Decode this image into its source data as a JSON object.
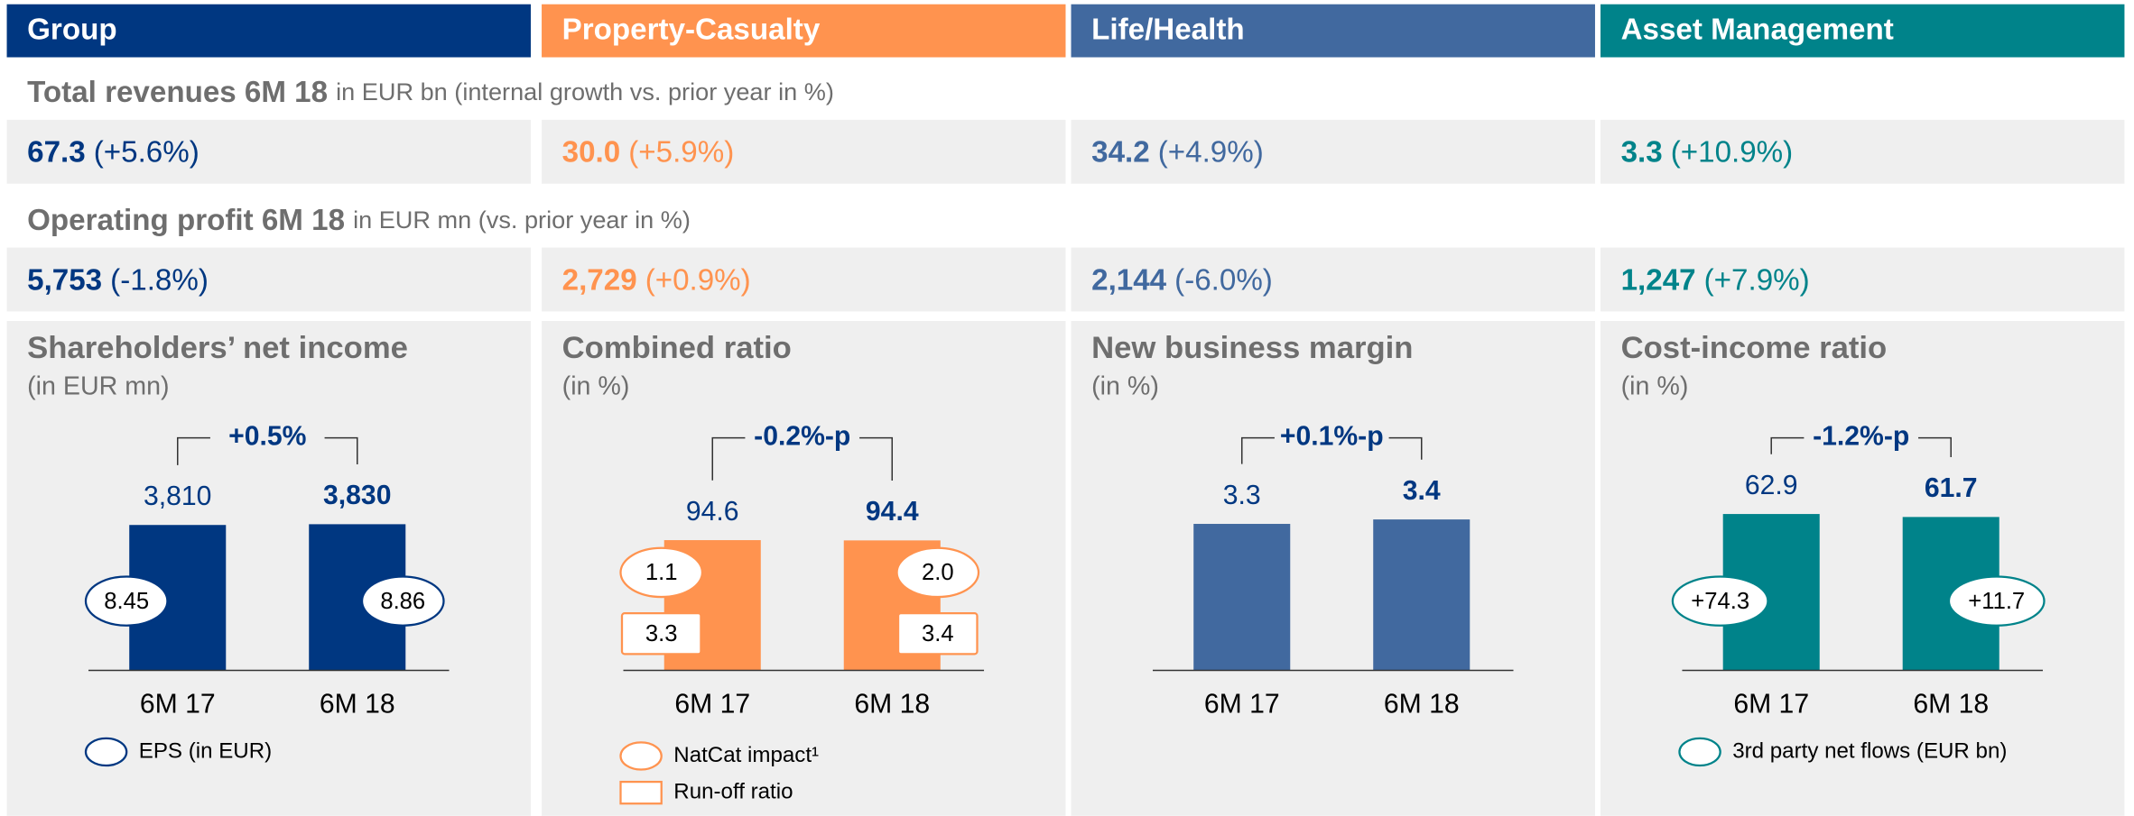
{
  "columns": [
    {
      "name": "Group",
      "color": "#003781"
    },
    {
      "name": "Property-Casualty",
      "color": "#ff934f"
    },
    {
      "name": "Life/Health",
      "color": "#41699f"
    },
    {
      "name": "Asset Management",
      "color": "#00838a"
    }
  ],
  "rows": [
    {
      "label": "Total revenues 6M 18",
      "note": "in EUR bn (internal growth vs. prior year in %)",
      "cells": [
        {
          "value": "67.3",
          "change": "(+5.6%)"
        },
        {
          "value": "30.0",
          "change": "(+5.9%)"
        },
        {
          "value": "34.2",
          "change": "(+4.9%)"
        },
        {
          "value": "3.3",
          "change": "(+10.9%)"
        }
      ]
    },
    {
      "label": "Operating profit 6M 18",
      "note": "in EUR mn (vs. prior year in %)",
      "cells": [
        {
          "value": "5,753",
          "change": "(-1.8%)"
        },
        {
          "value": "2,729",
          "change": "(+0.9%)"
        },
        {
          "value": "2,144",
          "change": "(-6.0%)"
        },
        {
          "value": "1,247",
          "change": "(+7.9%)"
        }
      ]
    }
  ],
  "chart_data": [
    {
      "type": "bar",
      "title": "Shareholders’ net income",
      "subtitle": "(in EUR mn)",
      "categories": [
        "6M 17",
        "6M 18"
      ],
      "values": [
        3810,
        3830
      ],
      "value_labels": [
        "3,810",
        "3,830"
      ],
      "color": "#003781",
      "ylim": [
        0,
        5700
      ],
      "change": "+0.5%",
      "markers": [
        {
          "name": "EPS (in EUR)",
          "shape": "ellipse",
          "values": [
            8.45,
            8.86
          ]
        }
      ]
    },
    {
      "type": "bar",
      "title": "Combined ratio",
      "subtitle": "(in %)",
      "categories": [
        "6M 17",
        "6M 18"
      ],
      "values": [
        94.6,
        94.4
      ],
      "color": "#ff934f",
      "ylim": [
        0,
        158
      ],
      "change": "-0.2%-p",
      "markers": [
        {
          "name": "NatCat impact¹",
          "shape": "ellipse",
          "values": [
            1.1,
            2.0
          ],
          "value_labels": [
            "1.1",
            "2.0"
          ]
        },
        {
          "name": "Run-off ratio",
          "shape": "box",
          "values": [
            3.3,
            3.4
          ]
        }
      ]
    },
    {
      "type": "bar",
      "title": "New business margin",
      "subtitle": "(in %)",
      "categories": [
        "6M 17",
        "6M 18"
      ],
      "values": [
        3.3,
        3.4
      ],
      "color": "#41699f",
      "ylim": [
        0,
        4.9
      ],
      "change": "+0.1%-p",
      "markers": []
    },
    {
      "type": "bar",
      "title": "Cost-income ratio",
      "subtitle": "(in %)",
      "categories": [
        "6M 17",
        "6M 18"
      ],
      "values": [
        62.9,
        61.7
      ],
      "color": "#00838a",
      "ylim": [
        0,
        87.5
      ],
      "change": "-1.2%-p",
      "markers": [
        {
          "name": "3rd party net flows (EUR bn)",
          "shape": "ellipse",
          "values": [
            74.3,
            11.7
          ],
          "value_labels": [
            "+74.3",
            "+11.7"
          ]
        }
      ]
    }
  ]
}
